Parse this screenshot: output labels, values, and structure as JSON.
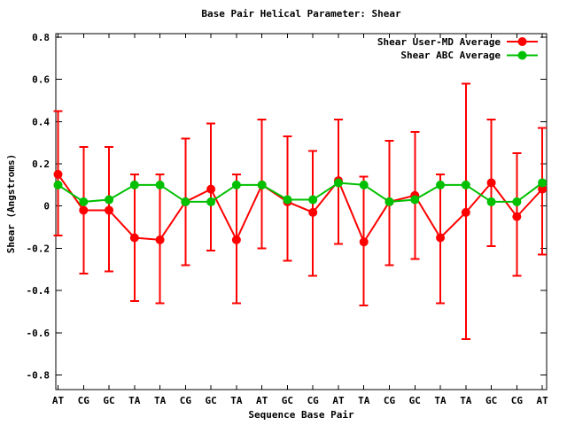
{
  "window": {
    "background_color": "#ffffff"
  },
  "chart_data": {
    "type": "line",
    "title": "Base Pair Helical Parameter: Shear",
    "xlabel": "Sequence Base Pair",
    "ylabel": "Shear (Angstroms)",
    "categories": [
      "AT",
      "CG",
      "GC",
      "TA",
      "TA",
      "CG",
      "GC",
      "TA",
      "AT",
      "GC",
      "CG",
      "AT",
      "TA",
      "CG",
      "GC",
      "TA",
      "TA",
      "GC",
      "CG",
      "AT"
    ],
    "yticks": [
      0.8,
      0.6,
      0.4,
      0.2,
      0,
      -0.2,
      -0.4,
      -0.6,
      -0.8
    ],
    "ylim": [
      -0.87,
      0.82
    ],
    "grid": false,
    "legend_position": "top-right-inside",
    "axis_color": "#000000",
    "series": [
      {
        "name": "Shear User-MD Average",
        "color": "#ff0000",
        "marker": "filled-circle",
        "has_error_bars": true,
        "values": [
          0.15,
          -0.02,
          -0.02,
          -0.15,
          -0.16,
          0.02,
          0.08,
          -0.16,
          0.1,
          0.02,
          -0.03,
          0.12,
          -0.17,
          0.02,
          0.05,
          -0.15,
          -0.03,
          0.11,
          -0.05,
          0.08
        ],
        "err_lo": [
          -0.14,
          -0.32,
          -0.31,
          -0.45,
          -0.46,
          -0.28,
          -0.21,
          -0.46,
          -0.2,
          -0.26,
          -0.33,
          -0.18,
          -0.47,
          -0.28,
          -0.25,
          -0.46,
          -0.63,
          -0.19,
          -0.33,
          -0.23
        ],
        "err_hi": [
          0.45,
          0.28,
          0.28,
          0.15,
          0.15,
          0.32,
          0.39,
          0.15,
          0.41,
          0.33,
          0.26,
          0.41,
          0.14,
          0.31,
          0.35,
          0.15,
          0.58,
          0.41,
          0.25,
          0.37
        ]
      },
      {
        "name": "Shear ABC Average",
        "color": "#00c000",
        "marker": "filled-circle",
        "has_error_bars": false,
        "values": [
          0.1,
          0.02,
          0.03,
          0.1,
          0.1,
          0.02,
          0.02,
          0.1,
          0.1,
          0.03,
          0.03,
          0.11,
          0.1,
          0.02,
          0.03,
          0.1,
          0.1,
          0.02,
          0.02,
          0.11
        ]
      }
    ]
  }
}
